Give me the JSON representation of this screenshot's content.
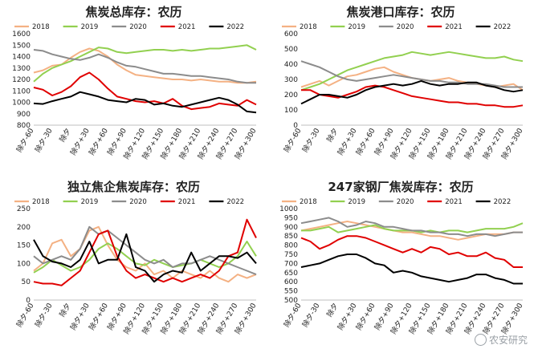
{
  "watermark": "农安研究",
  "chart_data": [
    {
      "type": "line",
      "title": "焦炭总库存：农历",
      "ylim": [
        800,
        1600
      ],
      "yticks": [
        800,
        900,
        1000,
        1100,
        1200,
        1300,
        1400,
        1500,
        1600
      ],
      "x": [
        -60,
        -45,
        -30,
        -15,
        0,
        15,
        30,
        45,
        60,
        75,
        90,
        105,
        120,
        135,
        150,
        165,
        180,
        195,
        210,
        225,
        240,
        255,
        270,
        285,
        300
      ],
      "xticks": [
        "除夕-60",
        "除夕-30",
        "除夕",
        "除夕+30",
        "除夕+60",
        "除夕+90",
        "除夕+120",
        "除夕+150",
        "除夕+180",
        "除夕+210",
        "除夕+240",
        "除夕+270",
        "除夕+300"
      ],
      "series": [
        {
          "name": "2018",
          "color": "#f4b183",
          "values": [
            1260,
            1280,
            1320,
            1330,
            1390,
            1440,
            1470,
            1450,
            1400,
            1330,
            1280,
            1240,
            1230,
            1220,
            1210,
            1200,
            1200,
            1190,
            1200,
            1190,
            1180,
            1180,
            1170,
            1170,
            1180
          ]
        },
        {
          "name": "2019",
          "color": "#92d050",
          "values": [
            1180,
            1250,
            1300,
            1330,
            1360,
            1400,
            1440,
            1480,
            1470,
            1440,
            1430,
            1440,
            1450,
            1460,
            1460,
            1450,
            1460,
            1450,
            1460,
            1470,
            1470,
            1480,
            1490,
            1500,
            1460
          ]
        },
        {
          "name": "2020",
          "color": "#8c8c8c",
          "values": [
            1460,
            1450,
            1420,
            1400,
            1380,
            1370,
            1390,
            1420,
            1390,
            1350,
            1320,
            1310,
            1290,
            1270,
            1250,
            1250,
            1240,
            1230,
            1230,
            1220,
            1210,
            1200,
            1180,
            1170,
            1170
          ]
        },
        {
          "name": "2021",
          "color": "#e00000",
          "values": [
            1130,
            1110,
            1060,
            1090,
            1140,
            1220,
            1260,
            1200,
            1120,
            1050,
            1030,
            1010,
            1000,
            1010,
            990,
            1030,
            970,
            940,
            950,
            960,
            990,
            980,
            970,
            1020,
            980
          ]
        },
        {
          "name": "2022",
          "color": "#000000",
          "values": [
            990,
            985,
            1010,
            1030,
            1050,
            1090,
            1070,
            1050,
            1020,
            1010,
            1000,
            1030,
            1020,
            980,
            990,
            970,
            960,
            980,
            1000,
            1020,
            1040,
            1020,
            980,
            920,
            910
          ]
        }
      ]
    },
    {
      "type": "line",
      "title": "焦炭港口库存：农历",
      "ylim": [
        0,
        600
      ],
      "yticks": [
        0,
        100,
        200,
        300,
        400,
        500,
        600
      ],
      "x": [
        -60,
        -45,
        -30,
        -15,
        0,
        15,
        30,
        45,
        60,
        75,
        90,
        105,
        120,
        135,
        150,
        165,
        180,
        195,
        210,
        225,
        240,
        255,
        270,
        285,
        300
      ],
      "xticks": [
        "除夕-60",
        "除夕-30",
        "除夕",
        "除夕+30",
        "除夕+60",
        "除夕+90",
        "除夕+120",
        "除夕+150",
        "除夕+180",
        "除夕+210",
        "除夕+240",
        "除夕+270",
        "除夕+300"
      ],
      "series": [
        {
          "name": "2018",
          "color": "#f4b183",
          "values": [
            250,
            270,
            290,
            260,
            290,
            320,
            330,
            350,
            370,
            380,
            350,
            330,
            310,
            300,
            290,
            300,
            310,
            290,
            280,
            270,
            260,
            250,
            260,
            270,
            230
          ]
        },
        {
          "name": "2019",
          "color": "#92d050",
          "values": [
            230,
            250,
            270,
            300,
            330,
            360,
            380,
            400,
            420,
            440,
            450,
            460,
            480,
            470,
            460,
            470,
            480,
            470,
            460,
            450,
            440,
            440,
            450,
            430,
            420
          ]
        },
        {
          "name": "2020",
          "color": "#8c8c8c",
          "values": [
            420,
            400,
            380,
            350,
            320,
            300,
            290,
            300,
            310,
            320,
            330,
            320,
            310,
            300,
            290,
            290,
            280,
            280,
            270,
            270,
            270,
            260,
            250,
            250,
            250
          ]
        },
        {
          "name": "2021",
          "color": "#e00000",
          "values": [
            230,
            230,
            200,
            190,
            180,
            200,
            220,
            250,
            260,
            250,
            230,
            210,
            190,
            180,
            170,
            160,
            150,
            150,
            140,
            140,
            130,
            130,
            120,
            120,
            130
          ]
        },
        {
          "name": "2022",
          "color": "#000000",
          "values": [
            140,
            170,
            200,
            200,
            190,
            180,
            200,
            230,
            250,
            260,
            270,
            260,
            270,
            290,
            270,
            260,
            270,
            270,
            280,
            280,
            260,
            250,
            230,
            220,
            230
          ]
        }
      ]
    },
    {
      "type": "line",
      "title": "独立焦企焦炭库存：农历",
      "ylim": [
        0,
        250
      ],
      "yticks": [
        0,
        50,
        100,
        150,
        200,
        250
      ],
      "x": [
        -60,
        -45,
        -30,
        -15,
        0,
        15,
        30,
        45,
        60,
        75,
        90,
        105,
        120,
        135,
        150,
        165,
        180,
        195,
        210,
        225,
        240,
        255,
        270,
        285,
        300
      ],
      "xticks": [
        "除夕-60",
        "除夕-30",
        "除夕",
        "除夕+30",
        "除夕+60",
        "除夕+90",
        "除夕+120",
        "除夕+150",
        "除夕+180",
        "除夕+210",
        "除夕+240",
        "除夕+270",
        "除夕+300"
      ],
      "series": [
        {
          "name": "2018",
          "color": "#f4b183",
          "values": [
            80,
            100,
            155,
            165,
            120,
            140,
            190,
            200,
            150,
            110,
            90,
            80,
            100,
            70,
            80,
            60,
            80,
            70,
            60,
            80,
            60,
            50,
            70,
            60,
            70
          ]
        },
        {
          "name": "2019",
          "color": "#92d050",
          "values": [
            75,
            90,
            110,
            95,
            80,
            90,
            110,
            140,
            155,
            140,
            120,
            100,
            95,
            110,
            100,
            90,
            95,
            100,
            110,
            100,
            90,
            100,
            120,
            160,
            120
          ]
        },
        {
          "name": "2020",
          "color": "#8c8c8c",
          "values": [
            120,
            100,
            110,
            120,
            110,
            140,
            200,
            180,
            190,
            170,
            150,
            130,
            110,
            100,
            110,
            90,
            100,
            100,
            110,
            120,
            110,
            100,
            90,
            80,
            70
          ]
        },
        {
          "name": "2021",
          "color": "#e00000",
          "values": [
            50,
            45,
            45,
            40,
            60,
            80,
            130,
            180,
            190,
            120,
            80,
            60,
            70,
            60,
            50,
            60,
            50,
            60,
            70,
            60,
            80,
            120,
            130,
            220,
            170
          ]
        },
        {
          "name": "2022",
          "color": "#000000",
          "values": [
            165,
            120,
            105,
            100,
            90,
            110,
            160,
            100,
            110,
            110,
            180,
            90,
            80,
            50,
            70,
            80,
            75,
            130,
            80,
            100,
            120,
            120,
            115,
            130,
            100
          ]
        }
      ]
    },
    {
      "type": "line",
      "title": "247家钢厂焦炭库存：农历",
      "ylim": [
        500,
        1000
      ],
      "yticks": [
        500,
        550,
        600,
        650,
        700,
        750,
        800,
        850,
        900,
        950,
        1000
      ],
      "x": [
        -60,
        -45,
        -30,
        -15,
        0,
        15,
        30,
        45,
        60,
        75,
        90,
        105,
        120,
        135,
        150,
        165,
        180,
        195,
        210,
        225,
        240,
        255,
        270,
        285,
        300
      ],
      "xticks": [
        "除夕-60",
        "除夕-30",
        "除夕",
        "除夕+30",
        "除夕+60",
        "除夕+90",
        "除夕+120",
        "除夕+150",
        "除夕+180",
        "除夕+210",
        "除夕+240",
        "除夕+270",
        "除夕+300"
      ],
      "series": [
        {
          "name": "2018",
          "color": "#f4b183",
          "values": [
            880,
            890,
            900,
            910,
            920,
            930,
            920,
            910,
            900,
            890,
            880,
            870,
            870,
            860,
            850,
            850,
            840,
            830,
            840,
            850,
            860,
            860,
            860,
            870,
            870
          ]
        },
        {
          "name": "2019",
          "color": "#92d050",
          "values": [
            880,
            880,
            890,
            900,
            870,
            880,
            890,
            900,
            910,
            890,
            880,
            880,
            880,
            870,
            880,
            870,
            880,
            880,
            870,
            880,
            890,
            890,
            890,
            900,
            920
          ]
        },
        {
          "name": "2020",
          "color": "#8c8c8c",
          "values": [
            920,
            930,
            940,
            950,
            930,
            900,
            910,
            930,
            920,
            900,
            900,
            890,
            880,
            880,
            870,
            870,
            860,
            860,
            850,
            860,
            860,
            850,
            860,
            870,
            870
          ]
        },
        {
          "name": "2021",
          "color": "#e00000",
          "values": [
            840,
            820,
            780,
            800,
            830,
            850,
            850,
            840,
            820,
            800,
            780,
            760,
            780,
            760,
            790,
            780,
            750,
            760,
            740,
            740,
            760,
            730,
            720,
            680,
            680
          ]
        },
        {
          "name": "2022",
          "color": "#000000",
          "values": [
            680,
            690,
            700,
            720,
            740,
            750,
            750,
            730,
            700,
            690,
            650,
            660,
            650,
            630,
            620,
            610,
            600,
            610,
            620,
            640,
            640,
            620,
            610,
            590,
            590
          ]
        }
      ]
    }
  ]
}
